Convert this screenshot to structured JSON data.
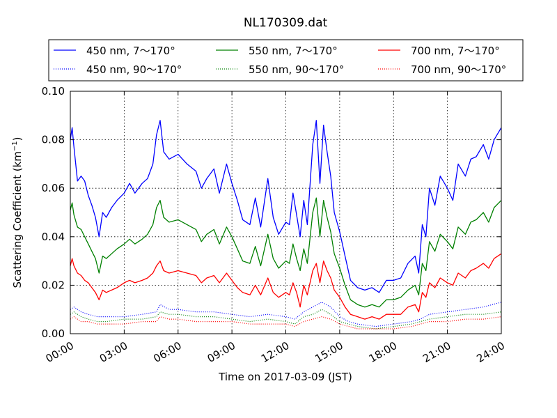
{
  "chart_data": {
    "type": "line",
    "title": "NL170309.dat",
    "xlabel": "Time on 2017-03-09 (JST)",
    "ylabel_main": "Scattering Coefficient (km",
    "ylabel_sup": "−1",
    "ylabel_close": ")",
    "xlim": [
      0,
      24
    ],
    "ylim": [
      0,
      0.1
    ],
    "x_ticks": [
      {
        "value": 0,
        "label": "00:00"
      },
      {
        "value": 3,
        "label": "03:00"
      },
      {
        "value": 6,
        "label": "06:00"
      },
      {
        "value": 9,
        "label": "09:00"
      },
      {
        "value": 12,
        "label": "12:00"
      },
      {
        "value": 15,
        "label": "15:00"
      },
      {
        "value": 18,
        "label": "18:00"
      },
      {
        "value": 21,
        "label": "21:00"
      },
      {
        "value": 24,
        "label": "24:00"
      }
    ],
    "y_ticks": [
      {
        "value": 0.0,
        "label": "0.00"
      },
      {
        "value": 0.02,
        "label": "0.02"
      },
      {
        "value": 0.04,
        "label": "0.04"
      },
      {
        "value": 0.06,
        "label": "0.06"
      },
      {
        "value": 0.08,
        "label": "0.08"
      },
      {
        "value": 0.1,
        "label": "0.10"
      }
    ],
    "grid": true,
    "legend_position": "top, above plot, 3 columns",
    "series": [
      {
        "name": "450 nm, 7～170°",
        "color": "#0000ff",
        "style": "solid",
        "x": [
          0,
          0.1,
          0.2,
          0.4,
          0.6,
          0.8,
          1.0,
          1.2,
          1.4,
          1.6,
          1.8,
          2.0,
          2.3,
          2.6,
          3.0,
          3.3,
          3.6,
          4.0,
          4.3,
          4.6,
          4.8,
          5.0,
          5.2,
          5.5,
          6.0,
          6.5,
          7.0,
          7.3,
          7.6,
          8.0,
          8.3,
          8.7,
          9.0,
          9.3,
          9.6,
          10.0,
          10.3,
          10.6,
          11.0,
          11.3,
          11.6,
          12.0,
          12.2,
          12.4,
          12.6,
          12.8,
          13.0,
          13.2,
          13.5,
          13.7,
          13.9,
          14.1,
          14.3,
          14.5,
          14.7,
          15.0,
          15.3,
          15.6,
          16.0,
          16.4,
          16.8,
          17.2,
          17.6,
          18.0,
          18.4,
          18.8,
          19.2,
          19.4,
          19.6,
          19.8,
          20.0,
          20.3,
          20.6,
          21.0,
          21.3,
          21.6,
          22.0,
          22.3,
          22.6,
          23.0,
          23.3,
          23.6,
          24.0
        ],
        "y": [
          0.08,
          0.085,
          0.077,
          0.063,
          0.065,
          0.063,
          0.057,
          0.053,
          0.048,
          0.04,
          0.05,
          0.048,
          0.052,
          0.055,
          0.058,
          0.062,
          0.058,
          0.062,
          0.064,
          0.07,
          0.082,
          0.088,
          0.075,
          0.072,
          0.074,
          0.07,
          0.067,
          0.06,
          0.064,
          0.068,
          0.058,
          0.07,
          0.062,
          0.055,
          0.047,
          0.045,
          0.056,
          0.044,
          0.064,
          0.048,
          0.041,
          0.046,
          0.045,
          0.058,
          0.049,
          0.04,
          0.055,
          0.045,
          0.078,
          0.088,
          0.062,
          0.086,
          0.075,
          0.065,
          0.05,
          0.042,
          0.032,
          0.022,
          0.019,
          0.018,
          0.019,
          0.017,
          0.022,
          0.022,
          0.023,
          0.029,
          0.032,
          0.025,
          0.045,
          0.04,
          0.06,
          0.053,
          0.065,
          0.06,
          0.055,
          0.07,
          0.065,
          0.072,
          0.073,
          0.078,
          0.072,
          0.08,
          0.085
        ]
      },
      {
        "name": "450 nm, 90～170°",
        "color": "#0000ff",
        "style": "dotted",
        "x": [
          0,
          0.2,
          0.6,
          1.0,
          1.5,
          2.0,
          3.0,
          4.0,
          4.8,
          5.0,
          5.5,
          6.0,
          7.0,
          8.0,
          9.0,
          10.0,
          11.0,
          12.0,
          12.5,
          13.0,
          13.5,
          14.0,
          14.5,
          15.0,
          15.5,
          16.0,
          17.0,
          18.0,
          19.0,
          19.5,
          20.0,
          21.0,
          22.0,
          23.0,
          24.0
        ],
        "y": [
          0.01,
          0.011,
          0.009,
          0.008,
          0.007,
          0.007,
          0.007,
          0.008,
          0.009,
          0.012,
          0.01,
          0.01,
          0.009,
          0.009,
          0.008,
          0.007,
          0.008,
          0.007,
          0.006,
          0.009,
          0.011,
          0.013,
          0.011,
          0.007,
          0.005,
          0.004,
          0.003,
          0.004,
          0.005,
          0.006,
          0.008,
          0.009,
          0.01,
          0.011,
          0.013
        ]
      },
      {
        "name": "550 nm, 7～170°",
        "color": "#008000",
        "style": "solid",
        "x": [
          0,
          0.1,
          0.2,
          0.4,
          0.6,
          0.8,
          1.0,
          1.2,
          1.4,
          1.6,
          1.8,
          2.0,
          2.3,
          2.6,
          3.0,
          3.3,
          3.6,
          4.0,
          4.3,
          4.6,
          4.8,
          5.0,
          5.2,
          5.5,
          6.0,
          6.5,
          7.0,
          7.3,
          7.6,
          8.0,
          8.3,
          8.7,
          9.0,
          9.3,
          9.6,
          10.0,
          10.3,
          10.6,
          11.0,
          11.3,
          11.6,
          12.0,
          12.2,
          12.4,
          12.6,
          12.8,
          13.0,
          13.2,
          13.5,
          13.7,
          13.9,
          14.1,
          14.3,
          14.5,
          14.7,
          15.0,
          15.3,
          15.6,
          16.0,
          16.4,
          16.8,
          17.2,
          17.6,
          18.0,
          18.4,
          18.8,
          19.2,
          19.4,
          19.6,
          19.8,
          20.0,
          20.3,
          20.6,
          21.0,
          21.3,
          21.6,
          22.0,
          22.3,
          22.6,
          23.0,
          23.3,
          23.6,
          24.0
        ],
        "y": [
          0.051,
          0.054,
          0.049,
          0.044,
          0.043,
          0.04,
          0.037,
          0.034,
          0.031,
          0.025,
          0.032,
          0.031,
          0.033,
          0.035,
          0.037,
          0.039,
          0.037,
          0.039,
          0.041,
          0.045,
          0.052,
          0.055,
          0.048,
          0.046,
          0.047,
          0.045,
          0.043,
          0.038,
          0.041,
          0.043,
          0.037,
          0.044,
          0.04,
          0.035,
          0.03,
          0.029,
          0.036,
          0.028,
          0.041,
          0.031,
          0.027,
          0.03,
          0.029,
          0.037,
          0.031,
          0.026,
          0.035,
          0.029,
          0.05,
          0.056,
          0.04,
          0.055,
          0.048,
          0.042,
          0.033,
          0.027,
          0.02,
          0.014,
          0.012,
          0.011,
          0.012,
          0.011,
          0.014,
          0.014,
          0.015,
          0.018,
          0.02,
          0.016,
          0.029,
          0.026,
          0.038,
          0.034,
          0.041,
          0.038,
          0.035,
          0.044,
          0.041,
          0.046,
          0.047,
          0.05,
          0.046,
          0.052,
          0.055
        ]
      },
      {
        "name": "550 nm, 90～170°",
        "color": "#008000",
        "style": "dotted",
        "x": [
          0,
          0.2,
          0.6,
          1.0,
          1.5,
          2.0,
          3.0,
          4.0,
          4.8,
          5.0,
          5.5,
          6.0,
          7.0,
          8.0,
          9.0,
          10.0,
          11.0,
          12.0,
          12.5,
          13.0,
          13.5,
          14.0,
          14.5,
          15.0,
          15.5,
          16.0,
          17.0,
          18.0,
          19.0,
          19.5,
          20.0,
          21.0,
          22.0,
          23.0,
          24.0
        ],
        "y": [
          0.008,
          0.009,
          0.007,
          0.006,
          0.005,
          0.005,
          0.006,
          0.006,
          0.007,
          0.009,
          0.008,
          0.008,
          0.007,
          0.007,
          0.006,
          0.005,
          0.006,
          0.005,
          0.004,
          0.007,
          0.008,
          0.01,
          0.008,
          0.005,
          0.004,
          0.003,
          0.002,
          0.003,
          0.004,
          0.005,
          0.006,
          0.007,
          0.008,
          0.008,
          0.009
        ]
      },
      {
        "name": "700 nm, 7～170°",
        "color": "#ff0000",
        "style": "solid",
        "x": [
          0,
          0.1,
          0.2,
          0.4,
          0.6,
          0.8,
          1.0,
          1.2,
          1.4,
          1.6,
          1.8,
          2.0,
          2.3,
          2.6,
          3.0,
          3.3,
          3.6,
          4.0,
          4.3,
          4.6,
          4.8,
          5.0,
          5.2,
          5.5,
          6.0,
          6.5,
          7.0,
          7.3,
          7.6,
          8.0,
          8.3,
          8.7,
          9.0,
          9.3,
          9.6,
          10.0,
          10.3,
          10.6,
          11.0,
          11.3,
          11.6,
          12.0,
          12.2,
          12.4,
          12.6,
          12.8,
          13.0,
          13.2,
          13.5,
          13.7,
          13.9,
          14.1,
          14.3,
          14.5,
          14.7,
          15.0,
          15.3,
          15.6,
          16.0,
          16.4,
          16.8,
          17.2,
          17.6,
          18.0,
          18.4,
          18.8,
          19.2,
          19.4,
          19.6,
          19.8,
          20.0,
          20.3,
          20.6,
          21.0,
          21.3,
          21.6,
          22.0,
          22.3,
          22.6,
          23.0,
          23.3,
          23.6,
          24.0
        ],
        "y": [
          0.028,
          0.031,
          0.028,
          0.025,
          0.024,
          0.022,
          0.021,
          0.019,
          0.017,
          0.014,
          0.018,
          0.017,
          0.018,
          0.019,
          0.021,
          0.022,
          0.021,
          0.022,
          0.023,
          0.025,
          0.028,
          0.03,
          0.026,
          0.025,
          0.026,
          0.025,
          0.024,
          0.021,
          0.023,
          0.024,
          0.021,
          0.025,
          0.022,
          0.019,
          0.017,
          0.016,
          0.02,
          0.016,
          0.023,
          0.017,
          0.015,
          0.017,
          0.016,
          0.021,
          0.017,
          0.011,
          0.02,
          0.016,
          0.026,
          0.029,
          0.021,
          0.03,
          0.026,
          0.023,
          0.018,
          0.015,
          0.011,
          0.008,
          0.007,
          0.006,
          0.007,
          0.006,
          0.008,
          0.008,
          0.008,
          0.011,
          0.012,
          0.009,
          0.017,
          0.015,
          0.021,
          0.019,
          0.023,
          0.021,
          0.02,
          0.025,
          0.023,
          0.026,
          0.027,
          0.029,
          0.027,
          0.031,
          0.033
        ]
      },
      {
        "name": "700 nm, 90～170°",
        "color": "#ff0000",
        "style": "dotted",
        "x": [
          0,
          0.2,
          0.6,
          1.0,
          1.5,
          2.0,
          3.0,
          4.0,
          4.8,
          5.0,
          5.5,
          6.0,
          7.0,
          8.0,
          9.0,
          10.0,
          11.0,
          12.0,
          12.5,
          13.0,
          13.5,
          14.0,
          14.5,
          15.0,
          15.5,
          16.0,
          17.0,
          18.0,
          19.0,
          19.5,
          20.0,
          21.0,
          22.0,
          23.0,
          24.0
        ],
        "y": [
          0.006,
          0.007,
          0.005,
          0.005,
          0.004,
          0.004,
          0.004,
          0.005,
          0.005,
          0.007,
          0.006,
          0.006,
          0.005,
          0.005,
          0.005,
          0.004,
          0.004,
          0.004,
          0.003,
          0.005,
          0.006,
          0.007,
          0.006,
          0.004,
          0.003,
          0.002,
          0.002,
          0.002,
          0.003,
          0.004,
          0.005,
          0.005,
          0.006,
          0.006,
          0.007
        ]
      }
    ]
  }
}
